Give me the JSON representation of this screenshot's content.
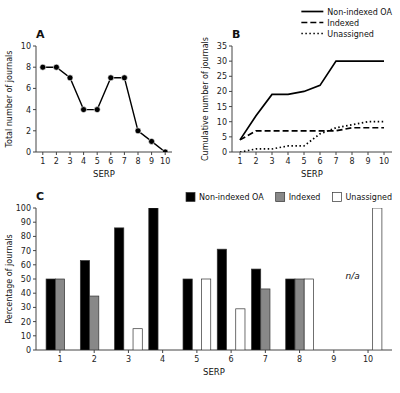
{
  "chart_data": [
    {
      "type": "line",
      "title": "A",
      "x": [
        1,
        2,
        3,
        4,
        5,
        6,
        7,
        8,
        9,
        10
      ],
      "values": [
        8,
        8,
        7,
        4,
        4,
        7,
        7,
        2,
        1,
        0
      ],
      "color": "#000000",
      "marker": "circle",
      "xlabel": "SERP",
      "ylabel": "Total number of journals",
      "xlim": [
        0.5,
        10.5
      ],
      "xticks": [
        1,
        2,
        3,
        4,
        5,
        6,
        7,
        8,
        9,
        10
      ],
      "ylim": [
        0,
        10
      ],
      "yticks": [
        0,
        2,
        4,
        6,
        8,
        10
      ],
      "grid": false
    },
    {
      "type": "line",
      "title": "B",
      "x": [
        1,
        2,
        3,
        4,
        5,
        6,
        7,
        8,
        9,
        10
      ],
      "series": [
        {
          "name": "Non-indexed OA",
          "color": "#000000",
          "line_style": "solid",
          "values": [
            4,
            12,
            19,
            19,
            20,
            22,
            30,
            30,
            30,
            30
          ]
        },
        {
          "name": "Indexed",
          "color": "#000000",
          "line_style": "dashed",
          "values": [
            4,
            7,
            7,
            7,
            7,
            7,
            7,
            8,
            8,
            8
          ]
        },
        {
          "name": "Unassigned",
          "color": "#000000",
          "line_style": "dotted",
          "values": [
            0,
            1,
            1,
            2,
            2,
            6,
            8,
            9,
            10,
            10
          ]
        }
      ],
      "xlabel": "SERP",
      "ylabel": "Cumulative number of journals",
      "xlim": [
        0.5,
        10.5
      ],
      "xticks": [
        1,
        2,
        3,
        4,
        5,
        6,
        7,
        8,
        9,
        10
      ],
      "ylim": [
        0,
        35
      ],
      "yticks": [
        0,
        5,
        10,
        15,
        20,
        25,
        30,
        35
      ],
      "legend": "upper right",
      "grid": false
    },
    {
      "type": "bar",
      "title": "C",
      "x": [
        1,
        2,
        3,
        4,
        5,
        6,
        7,
        8,
        9,
        10
      ],
      "series": [
        {
          "name": "Non-indexed OA",
          "color": "#000000",
          "values": [
            50,
            63,
            86,
            100,
            50,
            71,
            57,
            50,
            0,
            0
          ]
        },
        {
          "name": "Indexed",
          "color": "#888888",
          "values": [
            50,
            38,
            0,
            0,
            0,
            0,
            43,
            50,
            0,
            0
          ]
        },
        {
          "name": "Unassigned",
          "color": "#ffffff",
          "values": [
            0,
            0,
            15,
            0,
            50,
            29,
            0,
            50,
            0,
            100
          ]
        }
      ],
      "xlabel": "SERP",
      "ylabel": "Percentage of journals",
      "xlim": [
        0.3,
        10.7
      ],
      "xticks": [
        1,
        2,
        3,
        4,
        5,
        6,
        7,
        8,
        9,
        10
      ],
      "ylim": [
        0,
        100
      ],
      "yticks": [
        0,
        10,
        20,
        30,
        40,
        50,
        60,
        70,
        80,
        90,
        100
      ],
      "annotations": [
        {
          "text": "n/a",
          "x": 9.55,
          "y": 52
        }
      ],
      "legend": "upper right",
      "grid": false
    }
  ]
}
